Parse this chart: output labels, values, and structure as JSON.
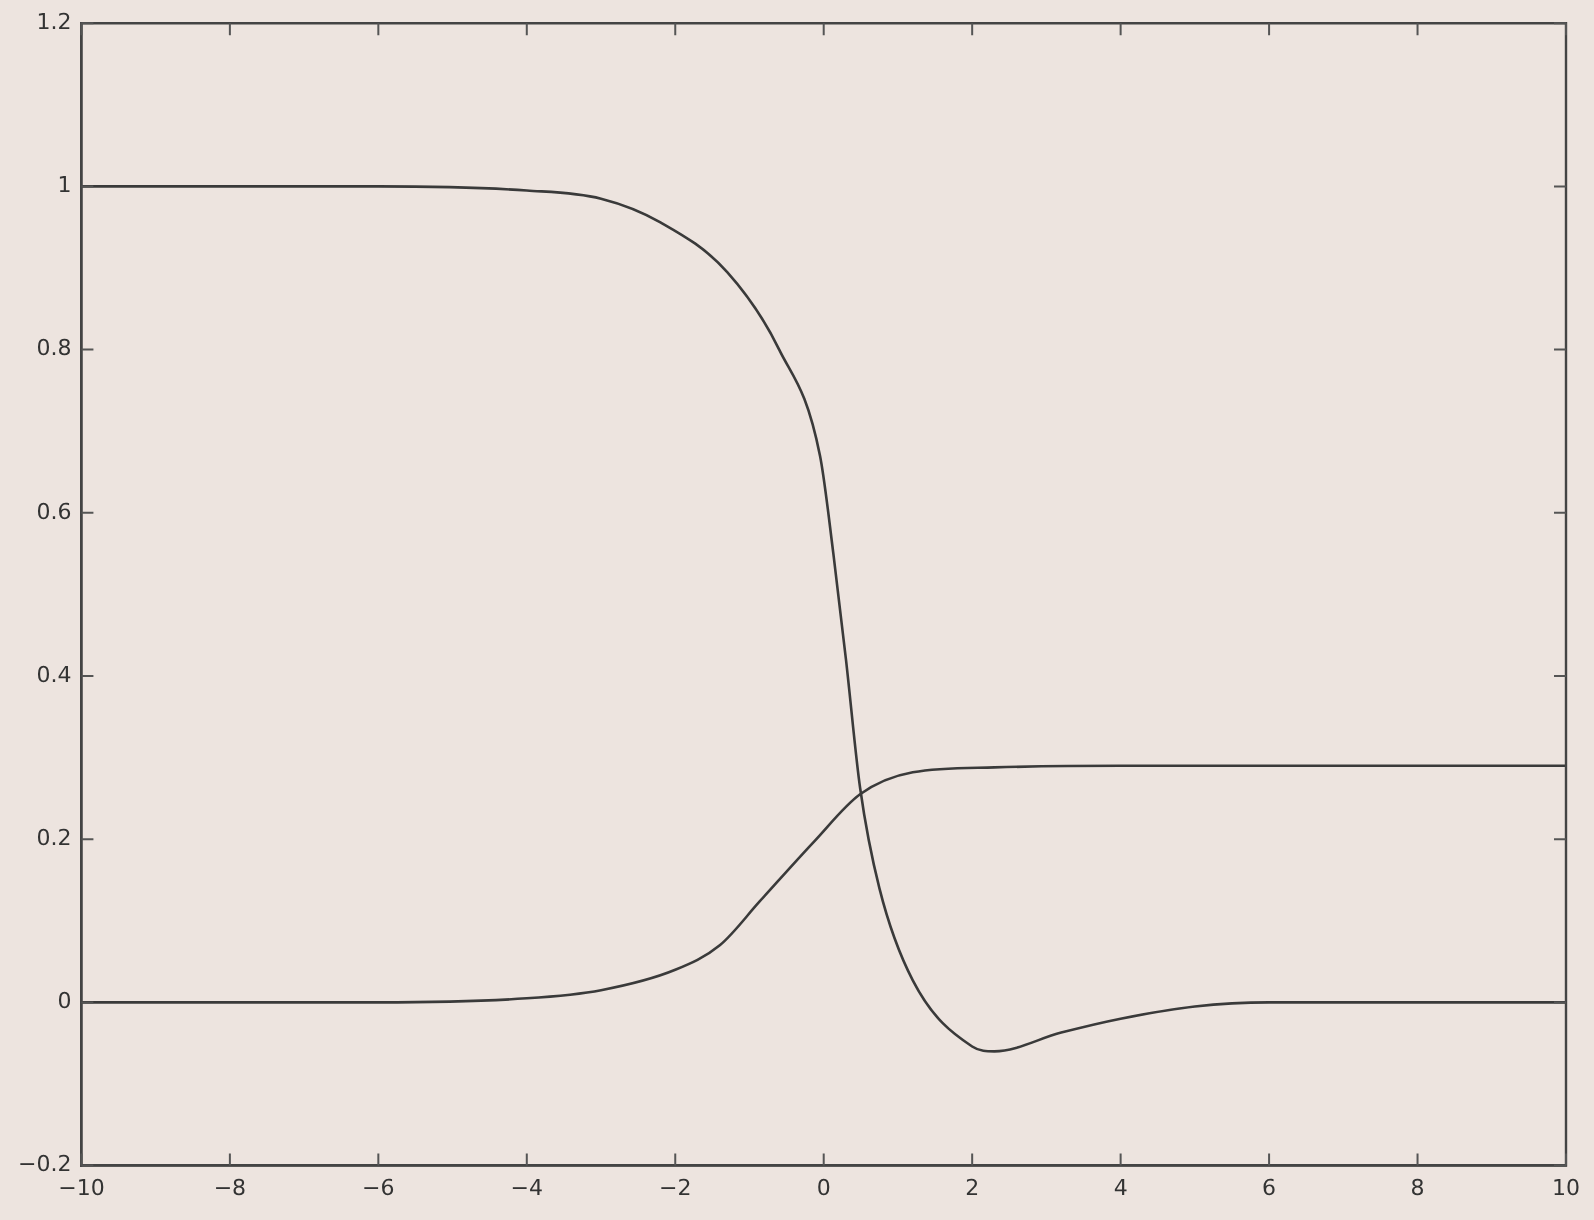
{
  "chart_data": {
    "type": "line",
    "marker": "none",
    "grid": false,
    "legend": false,
    "xlim": [
      -10,
      10
    ],
    "xticks": [
      -10,
      -8,
      -6,
      -4,
      -2,
      0,
      2,
      4,
      6,
      8,
      10
    ],
    "ylim": [
      -0.2,
      1.2
    ],
    "yticks": [
      -0.2,
      0,
      0.2,
      0.4,
      0.6,
      0.8,
      1,
      1.2
    ],
    "series": [
      {
        "color": "#3a3a3a",
        "x": [
          -10,
          -6,
          -4,
          -3,
          -2.2,
          -1.3,
          -0.6,
          -0.05,
          0.13,
          0.3,
          0.49,
          0.75,
          1.2,
          2,
          2.3,
          3.2,
          4,
          5,
          6,
          8,
          10
        ],
        "values": [
          1,
          1,
          0.995,
          0.985,
          0.956,
          0.895,
          0.8,
          0.67,
          0.55,
          0.42,
          0.263,
          0.14,
          0.027,
          -0.054,
          -0.06,
          -0.037,
          -0.02,
          -0.005,
          0,
          0,
          0
        ]
      },
      {
        "color": "#3a3a3a",
        "x": [
          -10,
          -6,
          -4,
          -3,
          -2,
          -1.4,
          -0.86,
          -0.13,
          0.49,
          1.2,
          2.3,
          4,
          6,
          8,
          10
        ],
        "values": [
          0,
          0,
          0.005,
          0.015,
          0.04,
          0.07,
          0.124,
          0.197,
          0.255,
          0.282,
          0.288,
          0.29,
          0.29,
          0.29,
          0.29
        ]
      }
    ]
  }
}
